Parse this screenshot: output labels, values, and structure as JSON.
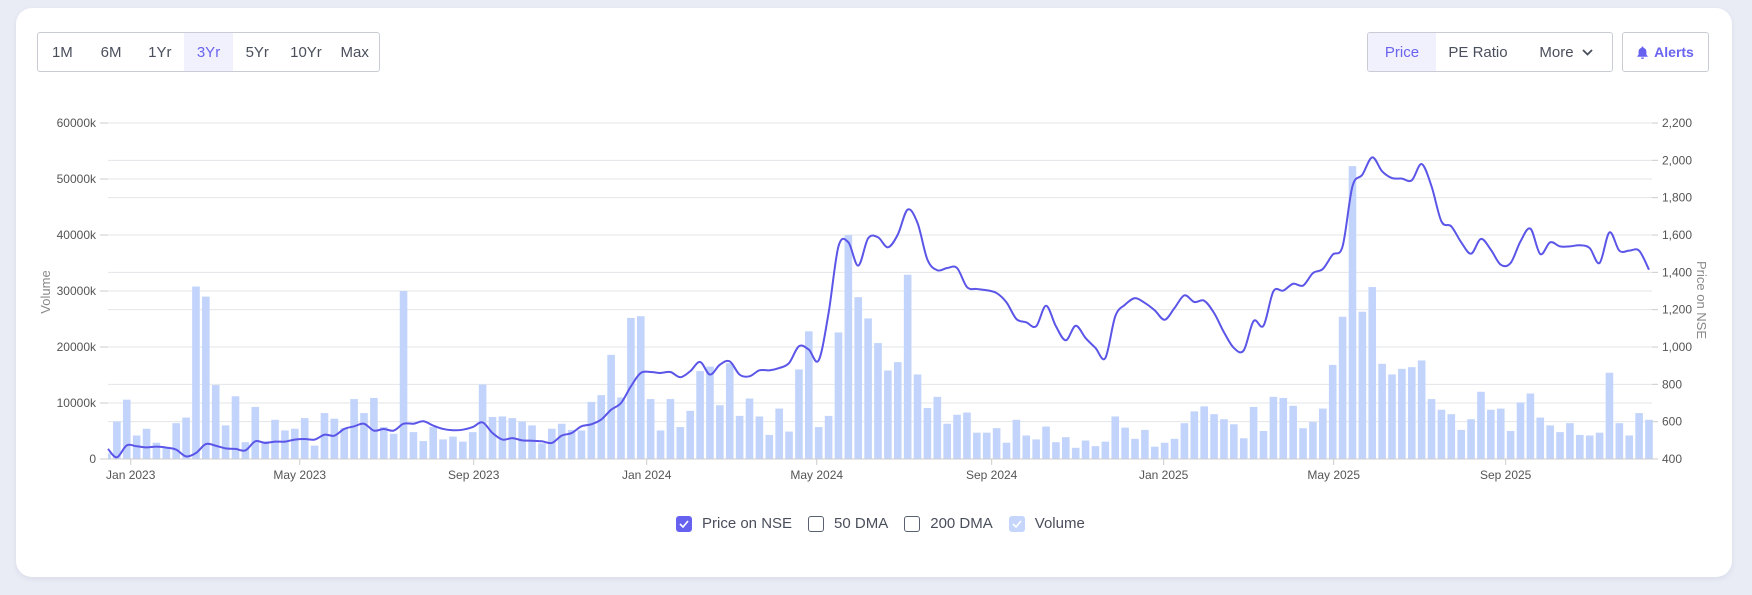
{
  "periods": {
    "items": [
      "1M",
      "6M",
      "1Yr",
      "3Yr",
      "5Yr",
      "10Yr",
      "Max"
    ],
    "active": "3Yr"
  },
  "metrics": {
    "price": "Price",
    "pe_ratio": "PE Ratio",
    "more": "More",
    "active": "Price"
  },
  "alerts": {
    "label": "Alerts",
    "icon": "bell-icon"
  },
  "legend": [
    {
      "label": "Price on NSE",
      "checked": true
    },
    {
      "label": "50 DMA",
      "checked": false
    },
    {
      "label": "200 DMA",
      "checked": false
    },
    {
      "label": "Volume",
      "checked": true
    }
  ],
  "colors": {
    "accent": "#6761f0",
    "price_line": "#5b55e8",
    "volume_bar": "#c2d4fb",
    "grid": "#e3e4e8"
  },
  "chart_data": {
    "type": "bar+line",
    "x_unit": "week index",
    "left_axis": {
      "title": "Volume",
      "range": [
        0,
        60000
      ],
      "ticks": [
        0,
        10000,
        20000,
        30000,
        40000,
        50000,
        60000
      ],
      "tick_labels": [
        "0",
        "10000k",
        "20000k",
        "30000k",
        "40000k",
        "50000k",
        "60000k"
      ]
    },
    "right_axis": {
      "title": "Price on NSE",
      "range": [
        400,
        2200
      ],
      "ticks": [
        400,
        600,
        800,
        1000,
        1200,
        1400,
        1600,
        1800,
        2000,
        2200
      ],
      "tick_labels": [
        "400",
        "600",
        "800",
        "1,000",
        "1,200",
        "1,400",
        "1,600",
        "1,800",
        "2,000",
        "2,200"
      ]
    },
    "x_ticks": [
      {
        "label": "Jan 2023",
        "at": 2.4
      },
      {
        "label": "May 2023",
        "at": 19.5
      },
      {
        "label": "Sep 2023",
        "at": 37.1
      },
      {
        "label": "Jan 2024",
        "at": 54.6
      },
      {
        "label": "May 2024",
        "at": 71.8
      },
      {
        "label": "Sep 2024",
        "at": 89.5
      },
      {
        "label": "Jan 2025",
        "at": 106.9
      },
      {
        "label": "May 2025",
        "at": 124.1
      },
      {
        "label": "Sep 2025",
        "at": 141.5
      }
    ],
    "grid": true,
    "legend_position": "bottom-center",
    "series": [
      {
        "name": "Volume",
        "type": "bar",
        "unit": "k",
        "values": [
          1000,
          6700,
          10600,
          4200,
          5400,
          2900,
          2100,
          6400,
          7400,
          30800,
          29000,
          13200,
          6000,
          11200,
          3000,
          9300,
          3200,
          7000,
          5100,
          5400,
          7300,
          2400,
          8200,
          7200,
          5500,
          10700,
          8200,
          10900,
          5700,
          4500,
          30000,
          4800,
          3200,
          5700,
          3500,
          4000,
          3100,
          4800,
          13300,
          7500,
          7600,
          7300,
          6700,
          6000,
          2800,
          5400,
          6300,
          5200,
          5100,
          10200,
          11400,
          18600,
          11000,
          25200,
          25500,
          10700,
          5100,
          10700,
          5700,
          8600,
          15700,
          16500,
          9600,
          17100,
          7700,
          10800,
          7600,
          4300,
          9000,
          4900,
          16000,
          22800,
          5700,
          7700,
          22600,
          40000,
          28900,
          25100,
          20700,
          15800,
          17300,
          32900,
          15100,
          9100,
          11100,
          6300,
          7900,
          8300,
          4700,
          4700,
          5500,
          2900,
          7000,
          4200,
          3500,
          5800,
          3000,
          3900,
          2000,
          3300,
          2300,
          3100,
          7600,
          5600,
          3600,
          5200,
          2200,
          2900,
          3600,
          6400,
          8500,
          9400,
          8000,
          7100,
          6200,
          3700,
          9300,
          5000,
          11100,
          10900,
          9500,
          5500,
          6600,
          9000,
          16800,
          25400,
          52300,
          26300,
          30700,
          17000,
          15100,
          16100,
          16400,
          17600,
          10700,
          8800,
          8000,
          5200,
          7100,
          12000,
          8800,
          9000,
          5000,
          10100,
          11700,
          7400,
          6000,
          4800,
          6400,
          4300,
          4200,
          4700,
          15400,
          6400,
          4200,
          8200,
          7000
        ]
      },
      {
        "name": "Price on NSE",
        "type": "line",
        "values": [
          454,
          409,
          473,
          468,
          462,
          466,
          461,
          450,
          414,
          432,
          480,
          471,
          457,
          454,
          446,
          495,
          486,
          493,
          493,
          504,
          507,
          504,
          530,
          525,
          561,
          575,
          589,
          552,
          561,
          552,
          589,
          589,
          602,
          579,
          561,
          554,
          557,
          571,
          596,
          539,
          504,
          512,
          500,
          498,
          495,
          486,
          525,
          539,
          575,
          586,
          611,
          664,
          700,
          789,
          861,
          866,
          861,
          866,
          838,
          870,
          920,
          852,
          905,
          923,
          852,
          843,
          875,
          875,
          887,
          914,
          1004,
          986,
          929,
          1182,
          1539,
          1561,
          1436,
          1582,
          1588,
          1534,
          1602,
          1736,
          1664,
          1468,
          1411,
          1423,
          1423,
          1321,
          1311,
          1304,
          1289,
          1239,
          1150,
          1132,
          1111,
          1221,
          1111,
          1036,
          1114,
          1048,
          995,
          941,
          1164,
          1227,
          1262,
          1236,
          1196,
          1146,
          1209,
          1277,
          1241,
          1248,
          1182,
          1079,
          995,
          982,
          1139,
          1114,
          1298,
          1302,
          1339,
          1329,
          1396,
          1418,
          1495,
          1539,
          1861,
          1923,
          2016,
          1941,
          1905,
          1902,
          1893,
          1980,
          1861,
          1673,
          1646,
          1561,
          1500,
          1579,
          1521,
          1441,
          1450,
          1566,
          1634,
          1498,
          1561,
          1539,
          1539,
          1545,
          1530,
          1450,
          1614,
          1516,
          1516,
          1516,
          1414
        ]
      }
    ]
  }
}
